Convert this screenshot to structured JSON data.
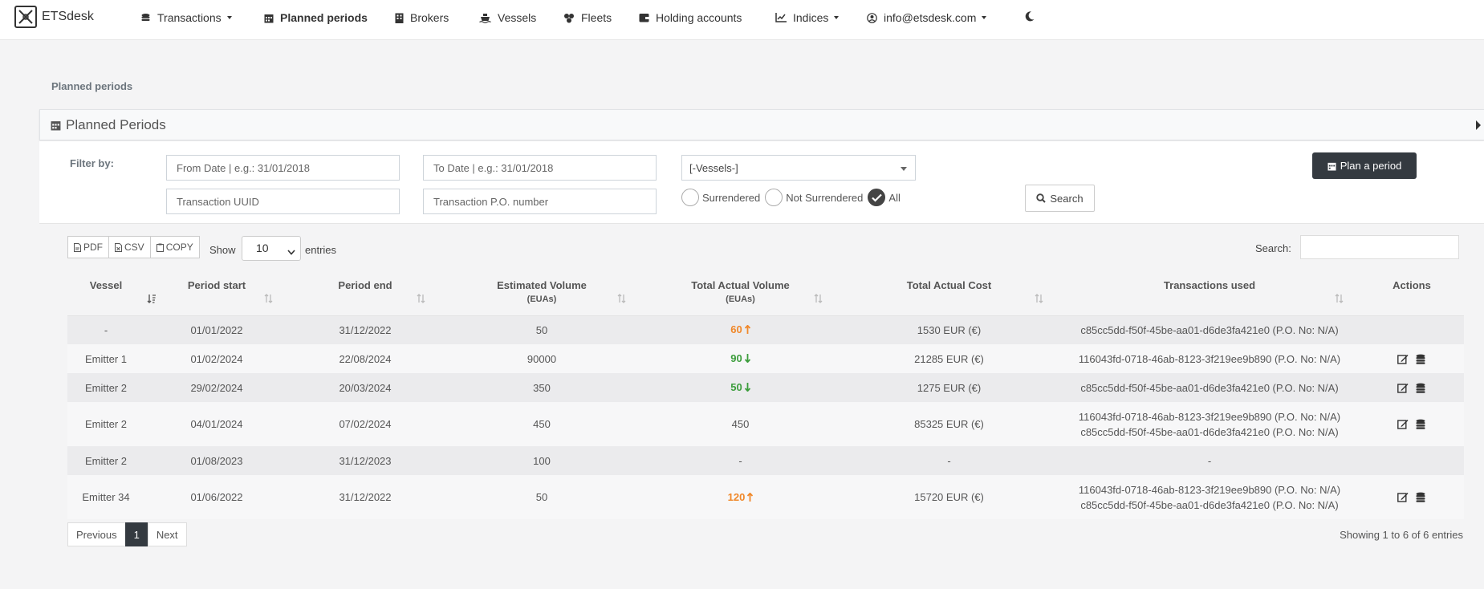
{
  "brand": {
    "name": "ETSdesk"
  },
  "nav": {
    "transactions": "Transactions",
    "planned_periods": "Planned periods",
    "brokers": "Brokers",
    "vessels": "Vessels",
    "fleets": "Fleets",
    "holding_accounts": "Holding accounts",
    "indices": "Indices",
    "account": "info@etsdesk.com"
  },
  "breadcrumb": "Planned periods",
  "panel": {
    "title": "Planned Periods"
  },
  "filters": {
    "label": "Filter by:",
    "from_placeholder": "From Date | e.g.: 31/01/2018",
    "to_placeholder": "To Date | e.g.: 31/01/2018",
    "uuid_placeholder": "Transaction UUID",
    "po_placeholder": "Transaction P.O. number",
    "vessel_select": "[-Vessels-]",
    "radio_surrendered": "Surrendered",
    "radio_not_surrendered": "Not Surrendered",
    "radio_all": "All",
    "radio_selected": "All",
    "search_button": "Search",
    "plan_button": "Plan a period"
  },
  "toolbar": {
    "pdf": "PDF",
    "csv": "CSV",
    "copy": "COPY",
    "show": "Show",
    "entries_value": "10",
    "entries": "entries",
    "search_label": "Search:"
  },
  "table": {
    "headers": {
      "vessel": "Vessel",
      "period_start": "Period start",
      "period_end": "Period end",
      "estimated_volume": "Estimated Volume",
      "estimated_volume_unit": "(EUAs)",
      "total_actual_volume": "Total Actual Volume",
      "total_actual_volume_unit": "(EUAs)",
      "total_actual_cost": "Total Actual Cost",
      "transactions_used": "Transactions used",
      "actions": "Actions"
    },
    "rows": [
      {
        "vessel": "-",
        "start": "01/01/2022",
        "end": "31/12/2022",
        "estimated": "50",
        "actual": "60",
        "trend": "up",
        "cost": "1530 EUR (€)",
        "tx1": "c85cc5dd-f50f-45be-aa01-d6de3fa421e0 (P.O. No: N/A)",
        "tx2": ""
      },
      {
        "vessel": "Emitter 1",
        "start": "01/02/2024",
        "end": "22/08/2024",
        "estimated": "90000",
        "actual": "90",
        "trend": "down",
        "cost": "21285 EUR (€)",
        "tx1": "116043fd-0718-46ab-8123-3f219ee9b890 (P.O. No: N/A)",
        "tx2": ""
      },
      {
        "vessel": "Emitter 2",
        "start": "29/02/2024",
        "end": "20/03/2024",
        "estimated": "350",
        "actual": "50",
        "trend": "down",
        "cost": "1275 EUR (€)",
        "tx1": "c85cc5dd-f50f-45be-aa01-d6de3fa421e0 (P.O. No: N/A)",
        "tx2": ""
      },
      {
        "vessel": "Emitter 2",
        "start": "04/01/2024",
        "end": "07/02/2024",
        "estimated": "450",
        "actual": "450",
        "trend": "none",
        "cost": "85325 EUR (€)",
        "tx1": "116043fd-0718-46ab-8123-3f219ee9b890 (P.O. No: N/A)",
        "tx2": "c85cc5dd-f50f-45be-aa01-d6de3fa421e0 (P.O. No: N/A)"
      },
      {
        "vessel": "Emitter 2",
        "start": "01/08/2023",
        "end": "31/12/2023",
        "estimated": "100",
        "actual": "-",
        "trend": "none",
        "cost": "-",
        "tx1": "-",
        "tx2": ""
      },
      {
        "vessel": "Emitter 34",
        "start": "01/06/2022",
        "end": "31/12/2022",
        "estimated": "50",
        "actual": "120",
        "trend": "up",
        "cost": "15720 EUR (€)",
        "tx1": "116043fd-0718-46ab-8123-3f219ee9b890 (P.O. No: N/A)",
        "tx2": "c85cc5dd-f50f-45be-aa01-d6de3fa421e0 (P.O. No: N/A)"
      }
    ]
  },
  "pagination": {
    "previous": "Previous",
    "current": "1",
    "next": "Next",
    "info": "Showing 1 to 6 of 6 entries"
  },
  "colors": {
    "accent_dark": "#343a40",
    "volume_up": "#f0882a",
    "volume_down": "#3c9d3c"
  }
}
